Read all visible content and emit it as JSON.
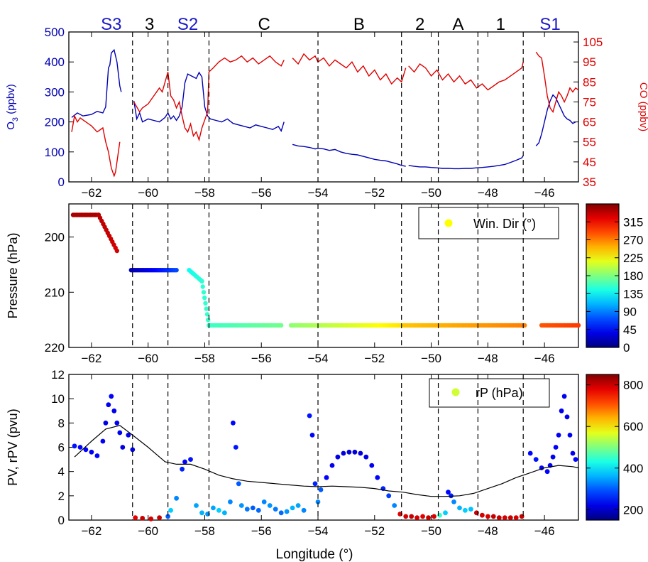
{
  "colors": {
    "o3": "#0000b4",
    "co": "#e00000",
    "blue_label": "#1a1ac8",
    "black": "#000000"
  },
  "shared": {
    "xlim": [
      -62.8,
      -44.8
    ],
    "xticks": [
      -62,
      -60,
      -58,
      -56,
      -54,
      -52,
      -50,
      -48,
      -46
    ],
    "xtick_labels": [
      "−62",
      "−60",
      "−58",
      "−56",
      "−54",
      "−52",
      "−50",
      "−48",
      "−46"
    ],
    "xlabel": "Longitude (°)",
    "dividers": [
      -60.55,
      -59.3,
      -57.85,
      -54.0,
      -51.05,
      -49.75,
      -48.35,
      -46.75
    ],
    "segments": [
      {
        "label": "S3",
        "x": -61.3,
        "color": "blue"
      },
      {
        "label": "3",
        "x": -59.95,
        "color": "black"
      },
      {
        "label": "S2",
        "x": -58.6,
        "color": "blue"
      },
      {
        "label": "C",
        "x": -55.9,
        "color": "black"
      },
      {
        "label": "B",
        "x": -52.55,
        "color": "black"
      },
      {
        "label": "2",
        "x": -50.4,
        "color": "black"
      },
      {
        "label": "A",
        "x": -49.05,
        "color": "black"
      },
      {
        "label": "1",
        "x": -47.55,
        "color": "black"
      },
      {
        "label": "S1",
        "x": -45.8,
        "color": "blue"
      }
    ]
  },
  "chart_data": [
    {
      "type": "line",
      "ylabel": "O3 (ppbv)",
      "ylabel_main": "O",
      "ylabel_sub": "3",
      "ylabel_rest": " (ppbv)",
      "ylim": [
        0,
        500
      ],
      "yticks": [
        0,
        100,
        200,
        300,
        400,
        500
      ],
      "y2label": "CO (ppbv)",
      "y2lim": [
        35,
        110
      ],
      "y2ticks": [
        35,
        45,
        55,
        65,
        75,
        85,
        95,
        105
      ],
      "series": [
        {
          "axis": "left",
          "x": [
            -62.7,
            -62.5,
            -62.3,
            -62.0,
            -61.8,
            -61.6,
            -61.5,
            -61.4,
            -61.35,
            -61.3,
            -61.2,
            -61.1,
            -61.0,
            -60.95,
            null,
            -60.5,
            -60.4,
            -60.3,
            -60.2,
            -60.0,
            -59.8,
            -59.6,
            -59.4,
            -59.3,
            -59.2,
            -59.1,
            -59.0,
            -58.9,
            -58.8,
            -58.7,
            -58.6,
            -58.5,
            -58.3,
            -58.2,
            -58.1,
            -58.0,
            -57.9,
            -57.8,
            -57.6,
            -57.4,
            -57.2,
            -57.0,
            -56.8,
            -56.6,
            -56.4,
            -56.2,
            -56.0,
            -55.8,
            -55.6,
            -55.4,
            -55.3,
            -55.2,
            null,
            -54.9,
            -54.7,
            -54.5,
            -54.3,
            -54.1,
            -54.0,
            -53.8,
            -53.6,
            -53.4,
            -53.2,
            -53.0,
            -52.8,
            -52.6,
            -52.4,
            -52.2,
            -52.0,
            -51.8,
            -51.6,
            -51.4,
            -51.2,
            -51.05,
            -50.9,
            null,
            -50.8,
            -50.6,
            -50.4,
            -50.2,
            -50.0,
            -49.8,
            -49.6,
            -49.4,
            -49.2,
            -49.0,
            -48.8,
            -48.6,
            -48.4,
            -48.2,
            -48.0,
            -47.8,
            -47.6,
            -47.4,
            -47.2,
            -47.0,
            -46.8,
            -46.75,
            null,
            -46.3,
            -46.2,
            -46.1,
            -46.0,
            -45.9,
            -45.8,
            -45.7,
            -45.6,
            -45.5,
            -45.4,
            -45.3,
            -45.2,
            -45.1,
            -45.0,
            -44.9
          ],
          "y": [
            215,
            230,
            220,
            225,
            235,
            230,
            250,
            380,
            390,
            430,
            440,
            400,
            320,
            300,
            null,
            270,
            210,
            230,
            200,
            210,
            205,
            200,
            215,
            230,
            210,
            220,
            205,
            220,
            250,
            330,
            360,
            355,
            345,
            365,
            350,
            250,
            220,
            210,
            205,
            200,
            210,
            195,
            190,
            185,
            180,
            190,
            185,
            180,
            175,
            185,
            170,
            200,
            null,
            125,
            120,
            118,
            115,
            110,
            112,
            110,
            105,
            108,
            100,
            95,
            92,
            90,
            85,
            80,
            75,
            72,
            70,
            65,
            60,
            55,
            52,
            null,
            55,
            52,
            50,
            50,
            48,
            47,
            45,
            45,
            44,
            44,
            45,
            45,
            47,
            48,
            50,
            52,
            55,
            58,
            65,
            72,
            80,
            88,
            null,
            120,
            130,
            160,
            200,
            240,
            270,
            290,
            280,
            260,
            240,
            220,
            210,
            205,
            195,
            200
          ]
        },
        {
          "axis": "right",
          "x": [
            -62.7,
            -62.6,
            -62.5,
            -62.4,
            -62.2,
            -62.0,
            -61.8,
            -61.6,
            -61.5,
            -61.4,
            -61.3,
            -61.2,
            -61.15,
            -61.1,
            -61.0,
            null,
            -60.5,
            -60.3,
            -60.2,
            -60.0,
            -59.8,
            -59.6,
            -59.5,
            -59.4,
            -59.3,
            -59.2,
            -59.1,
            -59.0,
            -58.9,
            -58.8,
            -58.7,
            -58.6,
            -58.5,
            -58.4,
            -58.3,
            -58.2,
            -58.1,
            -58.0,
            -57.9,
            -57.85,
            -57.7,
            -57.5,
            -57.3,
            -57.1,
            -56.9,
            -56.7,
            -56.5,
            -56.3,
            -56.1,
            -55.9,
            -55.7,
            -55.5,
            -55.3,
            -55.2,
            null,
            -54.9,
            -54.7,
            -54.5,
            -54.3,
            -54.1,
            -54.0,
            -53.8,
            -53.6,
            -53.4,
            -53.2,
            -53.0,
            -52.8,
            -52.6,
            -52.4,
            -52.2,
            -52.0,
            -51.8,
            -51.6,
            -51.4,
            -51.2,
            -51.05,
            -50.9,
            null,
            -50.8,
            -50.6,
            -50.4,
            -50.2,
            -50.0,
            -49.8,
            -49.6,
            -49.4,
            -49.2,
            -49.0,
            -48.8,
            -48.6,
            -48.4,
            -48.2,
            -48.0,
            -47.8,
            -47.6,
            -47.4,
            -47.2,
            -47.0,
            -46.8,
            -46.75,
            null,
            -46.3,
            -46.2,
            -46.1,
            -46.0,
            -45.9,
            -45.8,
            -45.7,
            -45.6,
            -45.5,
            -45.4,
            -45.3,
            -45.2,
            -45.1,
            -45.0,
            -44.9,
            -44.8
          ],
          "y": [
            60,
            68,
            65,
            67,
            65,
            63,
            60,
            62,
            55,
            50,
            42,
            38,
            40,
            45,
            55,
            null,
            75,
            70,
            72,
            74,
            78,
            82,
            80,
            85,
            90,
            78,
            76,
            72,
            75,
            68,
            62,
            60,
            64,
            58,
            60,
            56,
            62,
            66,
            70,
            90,
            92,
            95,
            97,
            95,
            96,
            98,
            95,
            97,
            94,
            96,
            98,
            95,
            93,
            96,
            null,
            97,
            94,
            99,
            96,
            98,
            95,
            97,
            93,
            96,
            94,
            92,
            95,
            90,
            93,
            88,
            91,
            86,
            89,
            84,
            87,
            85,
            92,
            null,
            93,
            90,
            94,
            92,
            88,
            91,
            86,
            89,
            85,
            88,
            84,
            86,
            82,
            84,
            81,
            83,
            85,
            86,
            88,
            90,
            92,
            95,
            null,
            100,
            98,
            97,
            88,
            78,
            72,
            70,
            75,
            80,
            78,
            75,
            78,
            82,
            80,
            82,
            81
          ]
        }
      ]
    },
    {
      "type": "scatter",
      "ylabel": "Pressure (hPa)",
      "ylim": [
        220,
        194
      ],
      "yticks": [
        200,
        210,
        220
      ],
      "legend": "Win. Dir (°)",
      "legend_position": "top-right",
      "colorbar": {
        "min": 0,
        "max": 360,
        "ticks": [
          0,
          45,
          90,
          135,
          180,
          225,
          270,
          315
        ]
      },
      "series": [
        {
          "x0": -62.65,
          "x1": -61.75,
          "p0": 196,
          "p1": 196,
          "c0": 345,
          "c1": 345
        },
        {
          "x0": -61.75,
          "x1": -61.1,
          "p0": 196,
          "p1": 202.5,
          "c0": 340,
          "c1": 330
        },
        {
          "x0": -60.6,
          "x1": -59.0,
          "p0": 206,
          "p1": 206,
          "c0": 15,
          "c1": 70
        },
        {
          "x0": -58.55,
          "x1": -58.1,
          "p0": 206,
          "p1": 208,
          "c0": 140,
          "c1": 150
        },
        {
          "x0": -58.1,
          "x1": -57.85,
          "p0": 208,
          "p1": 216,
          "c0": 150,
          "c1": 155
        },
        {
          "x0": -57.85,
          "x1": -55.3,
          "p0": 216,
          "p1": 216,
          "c0": 155,
          "c1": 175
        },
        {
          "x0": -54.95,
          "x1": -51.0,
          "p0": 216,
          "p1": 216,
          "c0": 185,
          "c1": 235
        },
        {
          "x0": -50.95,
          "x1": -46.7,
          "p0": 216,
          "p1": 216,
          "c0": 245,
          "c1": 270
        },
        {
          "x0": -46.1,
          "x1": -44.8,
          "p0": 216,
          "p1": 216,
          "c0": 285,
          "c1": 295
        }
      ]
    },
    {
      "type": "scatter",
      "ylabel": "PV, rPV (pvu)",
      "ylim": [
        0,
        12
      ],
      "yticks": [
        0,
        2,
        4,
        6,
        8,
        10,
        12
      ],
      "legend": "rP (hPa)",
      "legend_position": "top-right",
      "colorbar": {
        "min": 150,
        "max": 850,
        "ticks": [
          200,
          400,
          600,
          800
        ]
      },
      "series": [
        {
          "name": "PV",
          "x": [
            -62.6,
            -62.4,
            -62.2,
            -62.0,
            -61.8,
            -61.6,
            -61.5,
            -61.4,
            -61.3,
            -61.2,
            -61.1,
            -61.0,
            -60.9,
            -60.7,
            -60.55,
            -60.45,
            -60.2,
            -59.9,
            -59.6,
            -59.3,
            -59.2,
            -59.0,
            -58.8,
            -58.7,
            -58.5,
            -58.3,
            -58.1,
            -57.9,
            -57.7,
            -57.5,
            -57.3,
            -57.1,
            -57.0,
            -56.9,
            -56.8,
            -56.7,
            -56.5,
            -56.3,
            -56.1,
            -55.9,
            -55.7,
            -55.5,
            -55.3,
            -55.1,
            -54.9,
            -54.7,
            -54.5,
            -54.3,
            -54.2,
            -54.1,
            -54.0,
            -53.9,
            -53.7,
            -53.5,
            -53.3,
            -53.1,
            -52.9,
            -52.7,
            -52.5,
            -52.3,
            -52.1,
            -51.9,
            -51.7,
            -51.5,
            -51.3,
            -51.1,
            -50.9,
            -50.7,
            -50.5,
            -50.3,
            -50.1,
            -49.9,
            -49.7,
            -49.5,
            -49.4,
            -49.3,
            -49.2,
            -49.0,
            -48.8,
            -48.6,
            -48.4,
            -48.2,
            -48.0,
            -47.8,
            -47.6,
            -47.4,
            -47.2,
            -47.0,
            -46.8,
            -46.5,
            -46.3,
            -46.1,
            -45.9,
            -45.8,
            -45.7,
            -45.6,
            -45.5,
            -45.4,
            -45.3,
            -45.2,
            -45.1,
            -45.0,
            -44.9
          ],
          "y": [
            6.1,
            6.0,
            5.8,
            5.6,
            5.3,
            6.5,
            8.0,
            9.5,
            10.2,
            9.0,
            8.0,
            7.2,
            6.0,
            7.0,
            5.8,
            0.2,
            0.15,
            0.1,
            0.2,
            0.3,
            0.8,
            1.8,
            4.2,
            4.8,
            5.0,
            1.2,
            0.6,
            0.5,
            1.0,
            0.8,
            0.6,
            1.5,
            8.0,
            6.0,
            3.0,
            1.2,
            0.9,
            1.0,
            0.8,
            1.5,
            1.2,
            0.9,
            0.6,
            0.7,
            1.0,
            1.2,
            0.8,
            8.6,
            7.0,
            3.0,
            1.5,
            2.5,
            3.5,
            4.5,
            5.2,
            5.5,
            5.6,
            5.6,
            5.5,
            5.2,
            4.5,
            3.5,
            2.6,
            2.0,
            1.2,
            0.5,
            0.3,
            0.3,
            0.2,
            0.3,
            0.2,
            0.3,
            0.4,
            0.6,
            2.3,
            2.0,
            1.5,
            1.0,
            0.8,
            0.9,
            0.6,
            0.4,
            0.3,
            0.3,
            0.2,
            0.2,
            0.2,
            0.2,
            0.3,
            5.5,
            5.0,
            4.3,
            4.0,
            4.5,
            5.2,
            6.0,
            7.0,
            9.0,
            10.2,
            8.5,
            7.0,
            5.5,
            5.0
          ],
          "c": [
            250,
            240,
            240,
            230,
            240,
            230,
            220,
            230,
            235,
            225,
            230,
            230,
            220,
            230,
            220,
            780,
            800,
            790,
            800,
            300,
            380,
            330,
            260,
            240,
            250,
            350,
            360,
            340,
            350,
            380,
            360,
            330,
            240,
            250,
            300,
            340,
            320,
            300,
            310,
            330,
            340,
            320,
            310,
            340,
            360,
            350,
            330,
            250,
            240,
            260,
            330,
            300,
            240,
            230,
            220,
            215,
            210,
            210,
            215,
            220,
            230,
            240,
            260,
            280,
            330,
            780,
            790,
            800,
            790,
            780,
            800,
            790,
            450,
            380,
            240,
            260,
            330,
            360,
            380,
            370,
            800,
            790,
            790,
            800,
            800,
            790,
            800,
            790,
            800,
            240,
            250,
            240,
            240,
            230,
            230,
            235,
            230,
            225,
            230,
            225,
            230,
            230,
            240
          ]
        },
        {
          "name": "rPV",
          "x": [
            -62.6,
            -62.0,
            -61.5,
            -61.0,
            -60.55,
            -60.0,
            -59.4,
            -59.0,
            -58.5,
            -58.0,
            -57.5,
            -57.0,
            -56.5,
            -56.0,
            -55.5,
            -55.0,
            -54.5,
            -54.0,
            -53.5,
            -53.0,
            -52.5,
            -52.0,
            -51.5,
            -51.0,
            -50.5,
            -50.0,
            -49.5,
            -49.0,
            -48.5,
            -48.0,
            -47.5,
            -47.0,
            -46.5,
            -46.0,
            -45.5,
            -45.0,
            -44.8
          ],
          "y": [
            5.2,
            6.5,
            7.5,
            7.8,
            7.0,
            6.0,
            4.8,
            4.6,
            4.6,
            4.2,
            3.7,
            3.4,
            3.2,
            3.1,
            3.0,
            2.9,
            2.8,
            2.75,
            2.8,
            2.75,
            2.7,
            2.6,
            2.4,
            2.3,
            2.1,
            1.95,
            1.95,
            2.0,
            2.2,
            2.6,
            3.0,
            3.5,
            3.9,
            4.3,
            4.5,
            4.4,
            4.3
          ]
        }
      ]
    }
  ]
}
